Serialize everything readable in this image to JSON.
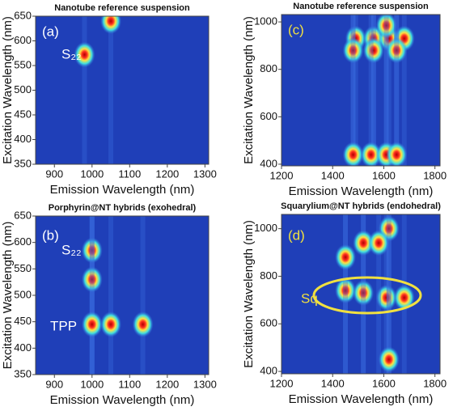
{
  "chart_data": [
    {
      "type": "heatmap",
      "title": "Nanotube reference suspension",
      "x_label": "Emission Wavelength (nm)",
      "y_label": "Excitation Wavelength (nm)",
      "xlim": [
        850,
        1310
      ],
      "xticks": [
        900,
        1000,
        1100,
        1200,
        1300
      ],
      "ylim": [
        350,
        650
      ],
      "yticks": [
        350,
        400,
        450,
        500,
        550,
        600,
        650
      ],
      "annotations": [
        {
          "text": "(a)",
          "color": "#ffffff"
        },
        {
          "text": "S₂₂",
          "color": "#ffffff"
        }
      ],
      "spots": {
        "x": [
          980,
          1050
        ],
        "y": [
          572,
          640
        ]
      }
    },
    {
      "type": "heatmap",
      "title": "Nanotube reference suspension",
      "x_label": "Emission Wavelength (nm)",
      "y_label": "Excitation Wavelength (nm)",
      "xlim": [
        1200,
        1820
      ],
      "xticks": [
        1200,
        1400,
        1600,
        1800
      ],
      "ylim": [
        393,
        1031
      ],
      "yticks": [
        400,
        600,
        800,
        1000
      ],
      "annotations": [
        {
          "text": "(c)",
          "color": "#f0e040"
        }
      ],
      "spots": {
        "x": [
          1490,
          1560,
          1620,
          1680,
          1610,
          1480,
          1560,
          1650,
          1480,
          1550,
          1610,
          1650
        ],
        "y": [
          930,
          930,
          930,
          930,
          985,
          880,
          880,
          880,
          440,
          440,
          440,
          440
        ]
      }
    },
    {
      "type": "heatmap",
      "title": "Porphyrin@NT hybrids (exohedral)",
      "x_label": "Emission Wavelength (nm)",
      "y_label": "Excitation Wavelength (nm)",
      "xlim": [
        850,
        1310
      ],
      "xticks": [
        900,
        1000,
        1100,
        1200,
        1300
      ],
      "ylim": [
        350,
        650
      ],
      "yticks": [
        350,
        400,
        450,
        500,
        550,
        600,
        650
      ],
      "annotations": [
        {
          "text": "(b)",
          "color": "#ffffff"
        },
        {
          "text": "S₂₂",
          "color": "#ffffff"
        },
        {
          "text": "TPP",
          "color": "#ffffff"
        }
      ],
      "spots": {
        "x": [
          1000,
          1000,
          1000,
          1050,
          1135
        ],
        "y": [
          585,
          530,
          445,
          445,
          445
        ]
      }
    },
    {
      "type": "heatmap",
      "title": "Squarylium@NT hybrids (endohedral)",
      "x_label": "Emission Wavelength (nm)",
      "y_label": "Excitation Wavelength (nm)",
      "xlim": [
        1200,
        1820
      ],
      "xticks": [
        1200,
        1400,
        1600,
        1800
      ],
      "ylim": [
        390,
        1060
      ],
      "yticks": [
        400,
        600,
        800,
        1000
      ],
      "annotations": [
        {
          "text": "(d)",
          "color": "#f0e040"
        },
        {
          "text": "Sq",
          "color": "#f0e040"
        }
      ],
      "spots": {
        "x": [
          1450,
          1520,
          1610,
          1680,
          1620,
          1520,
          1580,
          1450,
          1620
        ],
        "y": [
          740,
          730,
          710,
          710,
          1000,
          940,
          940,
          880,
          450
        ]
      }
    }
  ]
}
